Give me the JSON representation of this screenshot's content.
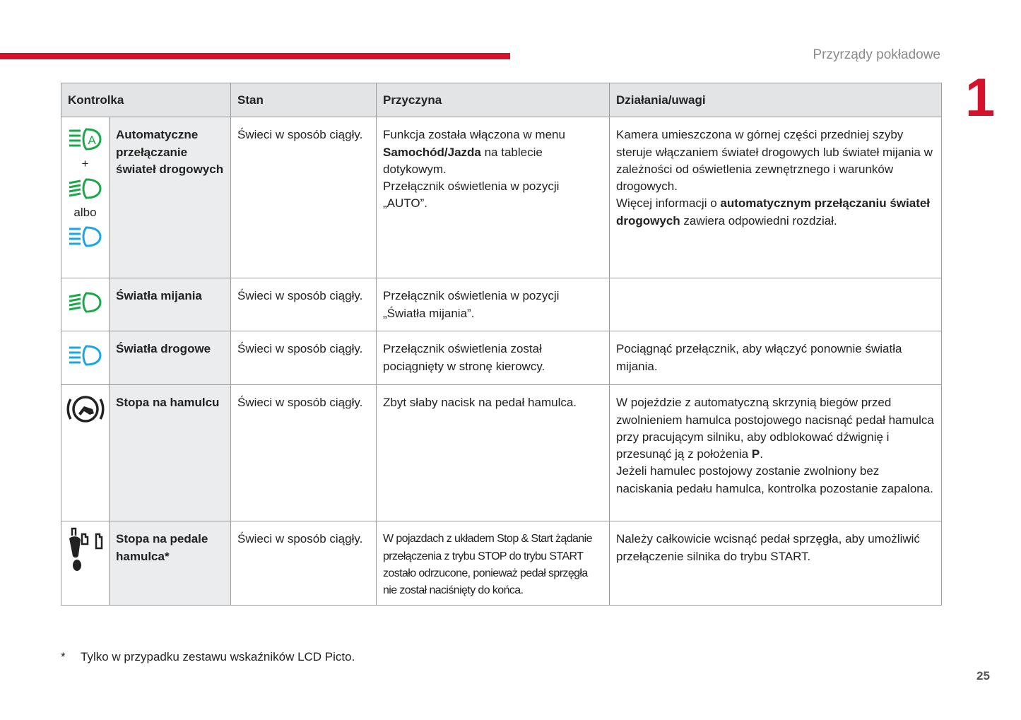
{
  "header": {
    "section": "Przyrządy pokładowe",
    "chapter": "1"
  },
  "colors": {
    "accent": "#d4122b",
    "green_icon": "#1aa84a",
    "blue_icon": "#1aa6e0"
  },
  "table": {
    "columns": [
      "Kontrolka",
      "Stan",
      "Przyczyna",
      "Działania/uwagi"
    ],
    "rows": [
      {
        "icons": [
          "auto-high-beam-icon",
          "dipped-beam-icon",
          "main-beam-icon"
        ],
        "plus": "+",
        "or": "albo",
        "name": "Automatyczne przełączanie świateł drogowych",
        "state": "Świeci w sposób ciągły.",
        "cause_parts": [
          "Funkcja została włączona w menu ",
          "Samochód/Jazda",
          " na tablecie dotykowym.",
          "Przełącznik oświetlenia w pozycji „AUTO”."
        ],
        "action_parts": [
          "Kamera umieszczona w górnej części przedniej szyby steruje włączaniem świateł drogowych lub świateł mijania w zależności od oświetlenia zewnętrznego i warunków drogowych.",
          "Więcej informacji o ",
          "automatycznym przełączaniu świateł drogowych",
          " zawiera odpowiedni rozdział."
        ]
      },
      {
        "icons": [
          "dipped-beam-icon"
        ],
        "name": "Światła mijania",
        "state": "Świeci w sposób ciągły.",
        "cause": "Przełącznik oświetlenia w pozycji „Światła mijania”.",
        "action": ""
      },
      {
        "icons": [
          "main-beam-icon"
        ],
        "name": "Światła drogowe",
        "state": "Świeci w sposób ciągły.",
        "cause": "Przełącznik oświetlenia został pociągnięty w stronę kierowcy.",
        "action": "Pociągnąć przełącznik, aby włączyć ponownie światła mijania."
      },
      {
        "icons": [
          "foot-on-brake-icon"
        ],
        "name": "Stopa na hamulcu",
        "state": "Świeci w sposób ciągły.",
        "cause": "Zbyt słaby nacisk na pedał hamulca.",
        "action_parts": [
          "W pojeździe z automatyczną skrzynią biegów przed zwolnieniem hamulca postojowego nacisnąć pedał hamulca przy pracującym silniku, aby odblokować dźwignię i przesunąć ją z położenia ",
          "P",
          ".",
          "Jeżeli hamulec postojowy zostanie zwolniony bez naciskania pedału hamulca, kontrolka pozostanie zapalona."
        ]
      },
      {
        "icons": [
          "foot-on-clutch-pedal-icon"
        ],
        "name": "Stopa na pedale hamulca*",
        "state": "Świeci w sposób ciągły.",
        "cause": "W pojazdach z układem Stop & Start żądanie przełączenia z trybu STOP do trybu START zostało odrzucone, ponieważ pedał sprzęgła nie został naciśnięty do końca.",
        "action": "Należy całkowicie wcisnąć pedał sprzęgła, aby umożliwić przełączenie silnika do trybu START."
      }
    ]
  },
  "footnote": {
    "mark": "*",
    "text": "Tylko w przypadku zestawu wskaźników LCD Picto."
  },
  "page_number": "25"
}
